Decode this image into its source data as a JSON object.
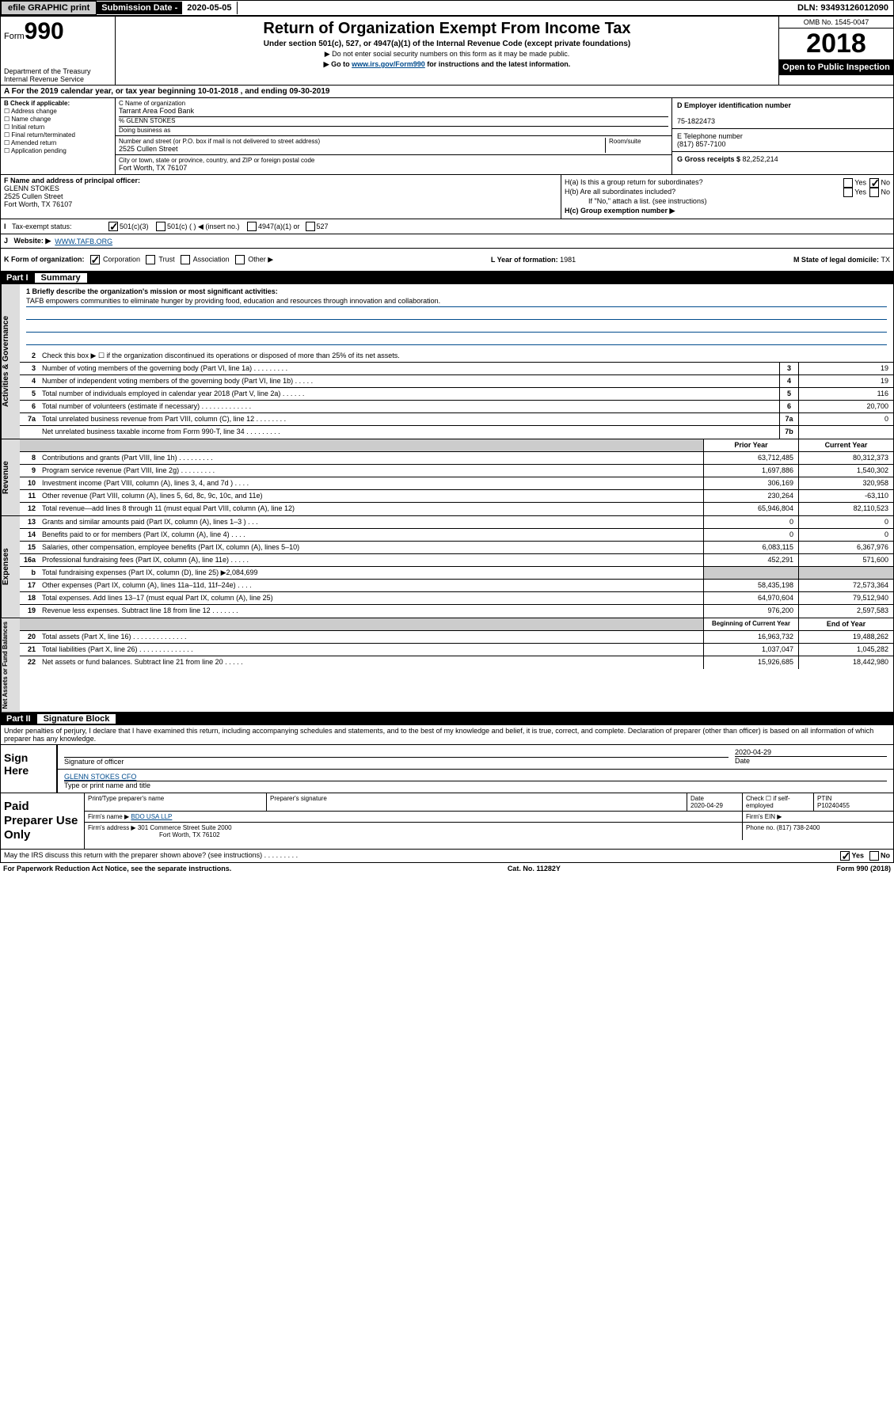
{
  "topbar": {
    "efile": "efile GRAPHIC print",
    "sub_label": "Submission Date - ",
    "sub_date": "2020-05-05",
    "dln_label": "DLN: ",
    "dln": "93493126012090"
  },
  "header": {
    "form_prefix": "Form",
    "form_num": "990",
    "dept": "Department of the Treasury\nInternal Revenue Service",
    "title": "Return of Organization Exempt From Income Tax",
    "subtitle": "Under section 501(c), 527, or 4947(a)(1) of the Internal Revenue Code (except private foundations)",
    "note1": "▶ Do not enter social security numbers on this form as it may be made public.",
    "note2_pre": "▶ Go to ",
    "note2_link": "www.irs.gov/Form990",
    "note2_post": " for instructions and the latest information.",
    "omb": "OMB No. 1545-0047",
    "year": "2018",
    "open": "Open to Public Inspection"
  },
  "row_a": "For the 2019 calendar year, or tax year beginning 10-01-2018    , and ending 09-30-2019",
  "box_b": {
    "title": "B Check if applicable:",
    "items": [
      "Address change",
      "Name change",
      "Initial return",
      "Final return/terminated",
      "Amended return",
      "Application pending"
    ]
  },
  "box_c": {
    "name_lbl": "C Name of organization",
    "name": "Tarrant Area Food Bank",
    "care_lbl": "% GLENN STOKES",
    "dba_lbl": "Doing business as",
    "addr_lbl": "Number and street (or P.O. box if mail is not delivered to street address)",
    "room_lbl": "Room/suite",
    "addr": "2525 Cullen Street",
    "city_lbl": "City or town, state or province, country, and ZIP or foreign postal code",
    "city": "Fort Worth, TX  76107"
  },
  "box_d": {
    "lbl": "D Employer identification number",
    "val": "75-1822473"
  },
  "box_e": {
    "lbl": "E Telephone number",
    "val": "(817) 857-7100"
  },
  "box_g": {
    "lbl": "G Gross receipts $ ",
    "val": "82,252,214"
  },
  "box_f": {
    "lbl": "F  Name and address of principal officer:",
    "name": "GLENN STOKES",
    "addr1": "2525 Cullen Street",
    "addr2": "Fort Worth, TX  76107"
  },
  "box_h": {
    "a": "H(a)  Is this a group return for subordinates?",
    "b": "H(b)  Are all subordinates included?",
    "b_note": "If \"No,\" attach a list. (see instructions)",
    "c": "H(c)  Group exemption number ▶",
    "yes": "Yes",
    "no": "No"
  },
  "tax_status": {
    "lbl": "Tax-exempt status:",
    "c3": "501(c)(3)",
    "c": "501(c) (  ) ◀ (insert no.)",
    "a1": "4947(a)(1) or",
    "s527": "527"
  },
  "website": {
    "lbl": "Website: ▶",
    "val": "WWW.TAFB.ORG"
  },
  "row_k": {
    "lbl": "K Form of organization:",
    "opts": [
      "Corporation",
      "Trust",
      "Association",
      "Other ▶"
    ],
    "l_lbl": "L Year of formation: ",
    "l_val": "1981",
    "m_lbl": "M State of legal domicile: ",
    "m_val": "TX"
  },
  "part1": {
    "num": "Part I",
    "title": "Summary"
  },
  "mission_q": "1  Briefly describe the organization's mission or most significant activities:",
  "mission": "TAFB empowers communities to eliminate hunger by providing food, education and resources through innovation and collaboration.",
  "gov_rows": [
    {
      "n": "2",
      "d": "Check this box ▶ ☐  if the organization discontinued its operations or disposed of more than 25% of its net assets."
    },
    {
      "n": "3",
      "d": "Number of voting members of the governing body (Part VI, line 1a)   .    .    .    .    .    .    .    .    .",
      "b": "3",
      "v": "19"
    },
    {
      "n": "4",
      "d": "Number of independent voting members of the governing body (Part VI, line 1b)   .    .    .    .    .",
      "b": "4",
      "v": "19"
    },
    {
      "n": "5",
      "d": "Total number of individuals employed in calendar year 2018 (Part V, line 2a)   .    .    .    .    .    .",
      "b": "5",
      "v": "116"
    },
    {
      "n": "6",
      "d": "Total number of volunteers (estimate if necessary)   .    .    .    .    .    .    .    .    .    .    .    .    .",
      "b": "6",
      "v": "20,700"
    },
    {
      "n": "7a",
      "d": "Total unrelated business revenue from Part VIII, column (C), line 12   .    .    .    .    .    .    .    .",
      "b": "7a",
      "v": "0"
    },
    {
      "n": "",
      "d": "Net unrelated business taxable income from Form 990-T, line 34   .    .    .    .    .    .    .    .    .",
      "b": "7b",
      "v": ""
    }
  ],
  "py_cy_hdr": {
    "py": "Prior Year",
    "cy": "Current Year"
  },
  "rev_rows": [
    {
      "n": "8",
      "d": "Contributions and grants (Part VIII, line 1h)   .    .    .    .    .    .    .    .    .",
      "py": "63,712,485",
      "cy": "80,312,373"
    },
    {
      "n": "9",
      "d": "Program service revenue (Part VIII, line 2g)   .    .    .    .    .    .    .    .    .",
      "py": "1,697,886",
      "cy": "1,540,302"
    },
    {
      "n": "10",
      "d": "Investment income (Part VIII, column (A), lines 3, 4, and 7d )   .    .    .    .",
      "py": "306,169",
      "cy": "320,958"
    },
    {
      "n": "11",
      "d": "Other revenue (Part VIII, column (A), lines 5, 6d, 8c, 9c, 10c, and 11e)",
      "py": "230,264",
      "cy": "-63,110"
    },
    {
      "n": "12",
      "d": "Total revenue—add lines 8 through 11 (must equal Part VIII, column (A), line 12)",
      "py": "65,946,804",
      "cy": "82,110,523"
    }
  ],
  "exp_rows": [
    {
      "n": "13",
      "d": "Grants and similar amounts paid (Part IX, column (A), lines 1–3 )   .    .    .",
      "py": "0",
      "cy": "0"
    },
    {
      "n": "14",
      "d": "Benefits paid to or for members (Part IX, column (A), line 4)   .    .    .    .",
      "py": "0",
      "cy": "0"
    },
    {
      "n": "15",
      "d": "Salaries, other compensation, employee benefits (Part IX, column (A), lines 5–10)",
      "py": "6,083,115",
      "cy": "6,367,976"
    },
    {
      "n": "16a",
      "d": "Professional fundraising fees (Part IX, column (A), line 11e)   .    .    .    .    .",
      "py": "452,291",
      "cy": "571,600"
    },
    {
      "n": "b",
      "d": "Total fundraising expenses (Part IX, column (D), line 25) ▶2,084,699",
      "py": "shaded",
      "cy": "shaded"
    },
    {
      "n": "17",
      "d": "Other expenses (Part IX, column (A), lines 11a–11d, 11f–24e)   .    .    .    .",
      "py": "58,435,198",
      "cy": "72,573,364"
    },
    {
      "n": "18",
      "d": "Total expenses. Add lines 13–17 (must equal Part IX, column (A), line 25)",
      "py": "64,970,604",
      "cy": "79,512,940"
    },
    {
      "n": "19",
      "d": "Revenue less expenses. Subtract line 18 from line 12   .    .    .    .    .    .    .",
      "py": "976,200",
      "cy": "2,597,583"
    }
  ],
  "na_hdr": {
    "py": "Beginning of Current Year",
    "cy": "End of Year"
  },
  "na_rows": [
    {
      "n": "20",
      "d": "Total assets (Part X, line 16)   .    .    .    .    .    .    .    .    .    .    .    .    .    .",
      "py": "16,963,732",
      "cy": "19,488,262"
    },
    {
      "n": "21",
      "d": "Total liabilities (Part X, line 26)   .    .    .    .    .    .    .    .    .    .    .    .    .    .",
      "py": "1,037,047",
      "cy": "1,045,282"
    },
    {
      "n": "22",
      "d": "Net assets or fund balances. Subtract line 21 from line 20   .    .    .    .    .",
      "py": "15,926,685",
      "cy": "18,442,980"
    }
  ],
  "part2": {
    "num": "Part II",
    "title": "Signature Block"
  },
  "sig": {
    "intro": "Under penalties of perjury, I declare that I have examined this return, including accompanying schedules and statements, and to the best of my knowledge and belief, it is true, correct, and complete. Declaration of preparer (other than officer) is based on all information of which preparer has any knowledge.",
    "sign_here": "Sign Here",
    "sig_lbl": "Signature of officer",
    "date": "2020-04-29",
    "date_lbl": "Date",
    "name": "GLENN STOKES CFO",
    "name_lbl": "Type or print name and title"
  },
  "prep": {
    "lbl": "Paid Preparer Use Only",
    "h1": "Print/Type preparer's name",
    "h2": "Preparer's signature",
    "h3": "Date",
    "h3v": "2020-04-29",
    "h4": "Check ☐ if self-employed",
    "h5": "PTIN",
    "h5v": "P10240455",
    "firm_lbl": "Firm's name    ▶ ",
    "firm": "BDO USA LLP",
    "ein_lbl": "Firm's EIN ▶",
    "addr_lbl": "Firm's address ▶ ",
    "addr": "301 Commerce Street Suite 2000",
    "addr2": "Fort Worth, TX  76102",
    "phone_lbl": "Phone no. ",
    "phone": "(817) 738-2400"
  },
  "discuss": {
    "q": "May the IRS discuss this return with the preparer shown above? (see instructions)   .    .    .    .    .    .    .    .    .",
    "yes": "Yes",
    "no": "No"
  },
  "footer": {
    "pra": "For Paperwork Reduction Act Notice, see the separate instructions.",
    "cat": "Cat. No. 11282Y",
    "form": "Form 990 (2018)"
  },
  "vtabs": {
    "gov": "Activities & Governance",
    "rev": "Revenue",
    "exp": "Expenses",
    "na": "Net Assets or Fund Balances"
  }
}
